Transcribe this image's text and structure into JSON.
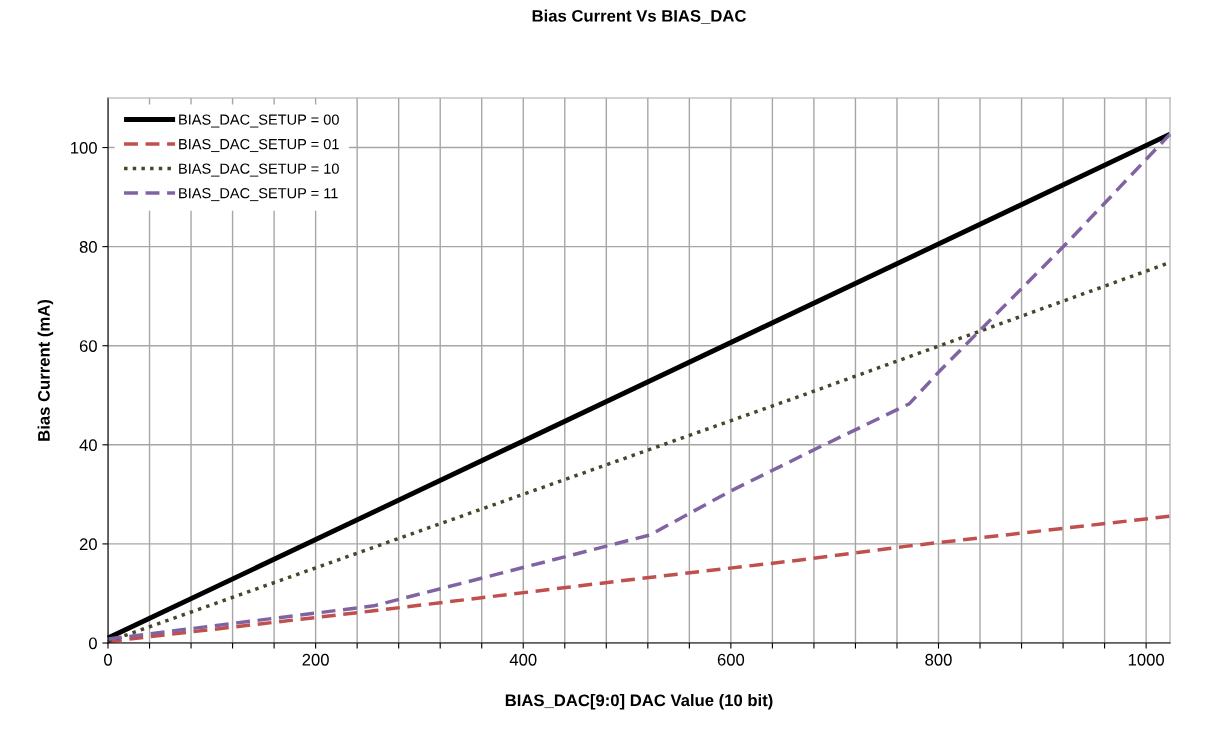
{
  "chart_data": {
    "type": "line",
    "title": "Bias Current Vs BIAS_DAC",
    "xlabel": "BIAS_DAC[9:0] DAC Value (10 bit)",
    "ylabel": "Bias Current (mA)",
    "xlim": [
      0,
      1023
    ],
    "ylim": [
      0,
      110
    ],
    "xticks": [
      0,
      {
        "value": 40,
        "label": null
      },
      {
        "value": 80,
        "label": null
      },
      {
        "value": 120,
        "label": null
      },
      {
        "value": 160,
        "label": null
      },
      200,
      {
        "value": 240,
        "label": null
      },
      {
        "value": 280,
        "label": null
      },
      {
        "value": 320,
        "label": null
      },
      {
        "value": 360,
        "label": null
      },
      400,
      {
        "value": 440,
        "label": null
      },
      {
        "value": 480,
        "label": null
      },
      {
        "value": 520,
        "label": null
      },
      {
        "value": 560,
        "label": null
      },
      600,
      {
        "value": 640,
        "label": null
      },
      {
        "value": 680,
        "label": null
      },
      {
        "value": 720,
        "label": null
      },
      {
        "value": 760,
        "label": null
      },
      800,
      {
        "value": 840,
        "label": null
      },
      {
        "value": 880,
        "label": null
      },
      {
        "value": 920,
        "label": null
      },
      {
        "value": 960,
        "label": null
      },
      1000
    ],
    "yticks": [
      0,
      20,
      40,
      60,
      80,
      100
    ],
    "grid": true,
    "legend": "top left",
    "marker": "none",
    "series": [
      {
        "name": "BIAS_DAC_SETUP = 00",
        "color": "#000000",
        "line_style": "solid",
        "x": [
          0,
          1023
        ],
        "values": [
          1,
          102.7
        ]
      },
      {
        "name": "BIAS_DAC_SETUP = 01",
        "color": "#c0504d",
        "line_style": "dashed",
        "x": [
          0,
          256,
          512,
          669,
          768,
          1023
        ],
        "values": [
          0.3,
          6.5,
          13,
          16.8,
          19.5,
          25.6
        ]
      },
      {
        "name": "BIAS_DAC_SETUP = 10",
        "color": "#4a452a",
        "line_style": "dotted",
        "x": [
          0,
          669,
          1023
        ],
        "values": [
          0.3,
          50,
          76.8
        ]
      },
      {
        "name": "BIAS_DAC_SETUP = 11",
        "color": "#8064a2",
        "line_style": "dashed",
        "x": [
          0,
          256,
          522,
          600,
          683,
          772,
          802,
          924,
          1023
        ],
        "values": [
          0.8,
          7.5,
          21.8,
          30.7,
          39.3,
          48.3,
          55.1,
          80.8,
          102.7
        ]
      }
    ]
  }
}
